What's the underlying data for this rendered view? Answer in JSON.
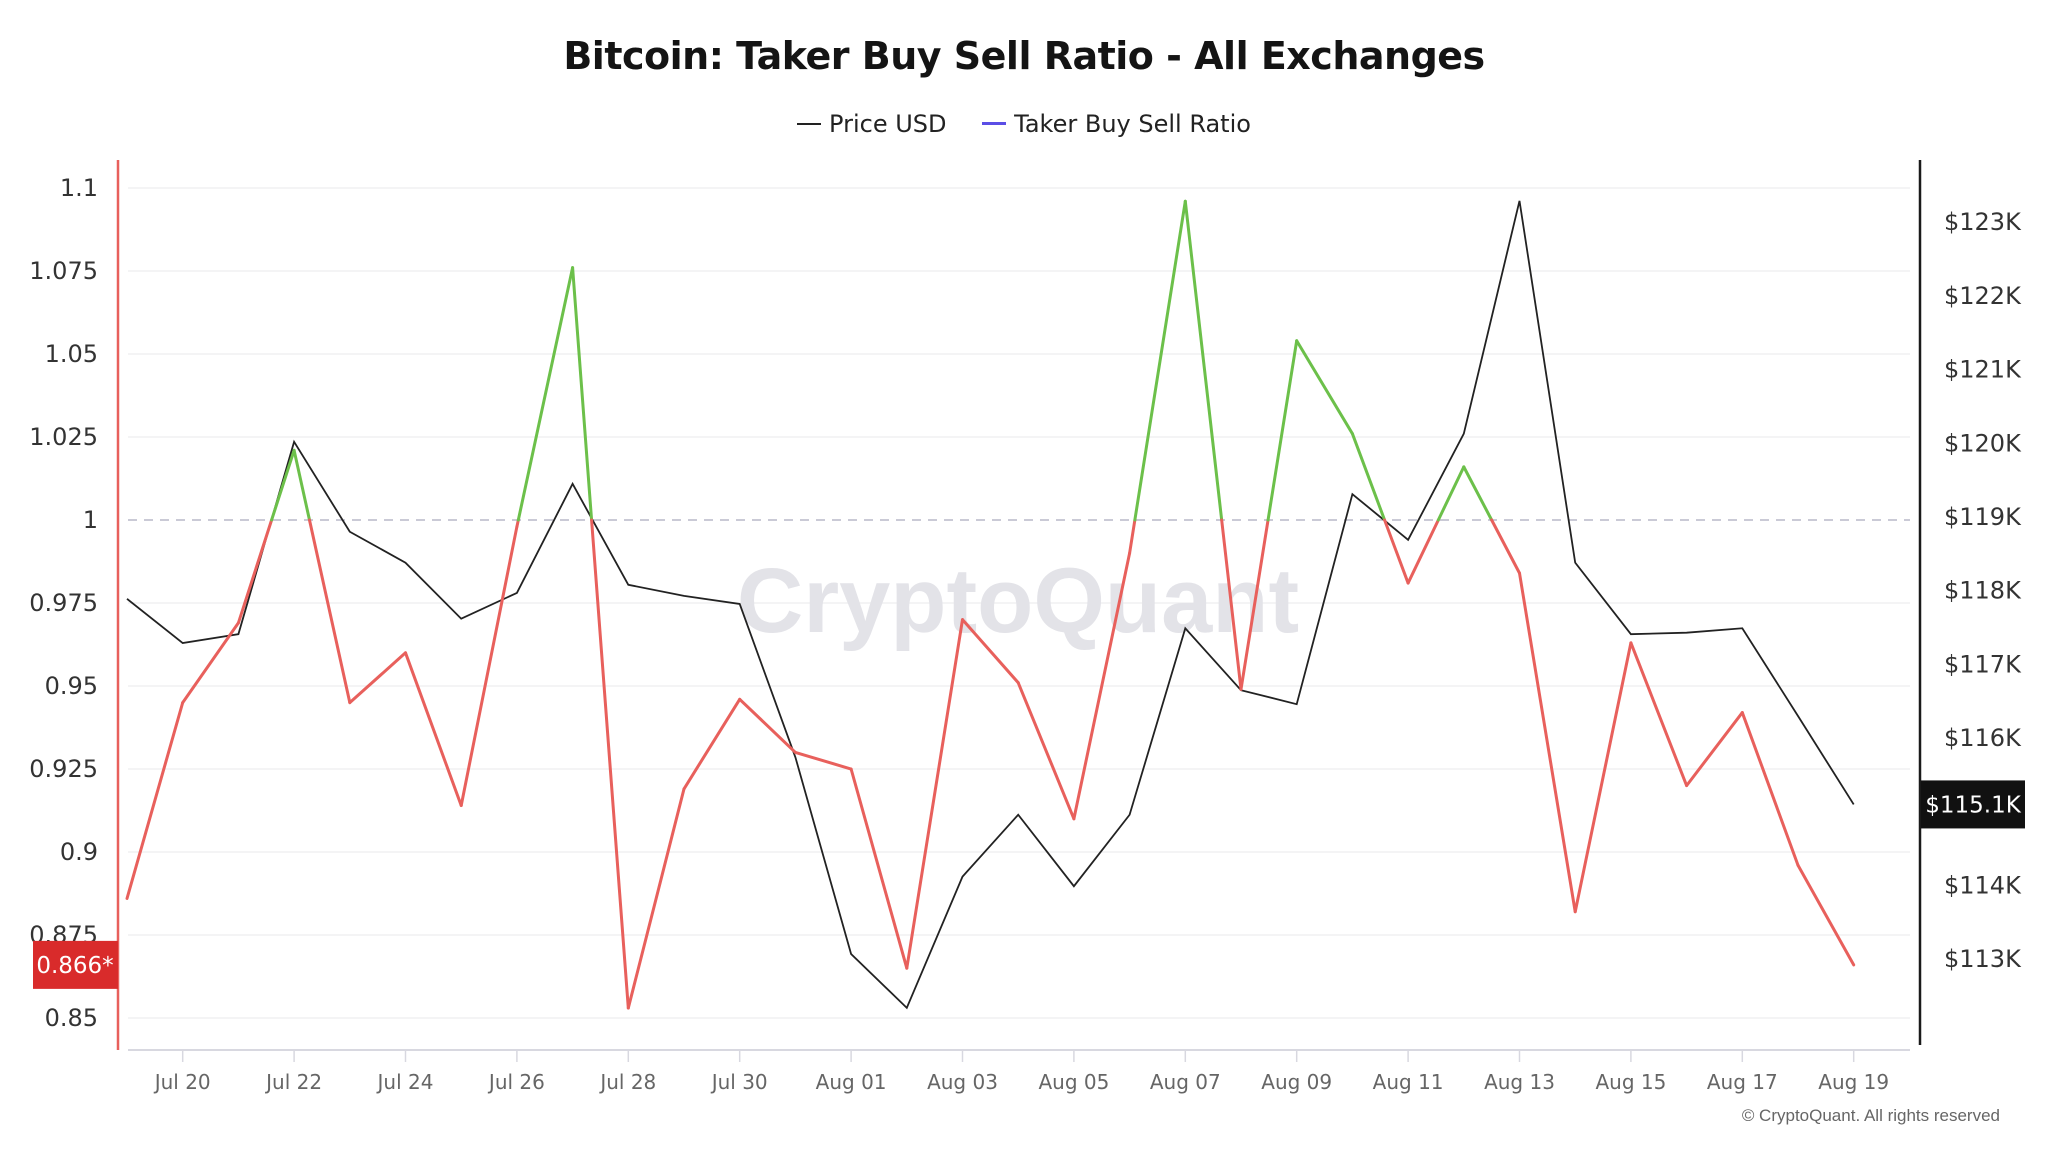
{
  "title": "Bitcoin: Taker Buy Sell Ratio - All Exchanges",
  "legend": [
    {
      "label": "Price USD",
      "color": "#222222"
    },
    {
      "label": "Taker Buy Sell Ratio",
      "color": "#5b4ee6"
    }
  ],
  "watermark": "CryptoQuant",
  "copyright": "© CryptoQuant. All rights reserved",
  "colors": {
    "ratio_above": "#6cc04a",
    "ratio_below": "#e8605c",
    "price": "#222222",
    "left_axis": "#e8605c",
    "right_axis": "#1a1a1a",
    "reference_line": "#b8b8c8",
    "grid": "#f0f0f2",
    "ratio_badge_bg": "#d92b2b",
    "price_badge_bg": "#111111"
  },
  "badges": {
    "ratio_current": "0.866*",
    "price_current": "$115.1K"
  },
  "chart_data": {
    "type": "line",
    "title": "Bitcoin: Taker Buy Sell Ratio - All Exchanges",
    "xlabel": "",
    "ylabel_left": "Taker Buy Sell Ratio",
    "ylabel_right": "Price USD",
    "legend_position": "top",
    "grid": true,
    "reference_line": {
      "axis": "left",
      "value": 1,
      "style": "dashed"
    },
    "x": [
      "Jul 19",
      "Jul 20",
      "Jul 21",
      "Jul 22",
      "Jul 23",
      "Jul 24",
      "Jul 25",
      "Jul 26",
      "Jul 27",
      "Jul 28",
      "Jul 29",
      "Jul 30",
      "Jul 31",
      "Aug 01",
      "Aug 02",
      "Aug 03",
      "Aug 04",
      "Aug 05",
      "Aug 06",
      "Aug 07",
      "Aug 08",
      "Aug 09",
      "Aug 10",
      "Aug 11",
      "Aug 12",
      "Aug 13",
      "Aug 14",
      "Aug 15",
      "Aug 16",
      "Aug 17",
      "Aug 18",
      "Aug 19"
    ],
    "x_ticks": [
      "Jul 20",
      "Jul 22",
      "Jul 24",
      "Jul 26",
      "Jul 28",
      "Jul 30",
      "Aug 01",
      "Aug 03",
      "Aug 05",
      "Aug 07",
      "Aug 09",
      "Aug 11",
      "Aug 13",
      "Aug 15",
      "Aug 17",
      "Aug 19"
    ],
    "left_axis": {
      "ticks": [
        "1.1",
        "1.075",
        "1.05",
        "1.025",
        "1",
        "0.975",
        "0.95",
        "0.925",
        "0.9",
        "0.875",
        "0.85"
      ],
      "range": [
        0.84,
        1.105
      ]
    },
    "right_axis": {
      "ticks": [
        "$123K",
        "$122K",
        "$121K",
        "$120K",
        "$119K",
        "$118K",
        "$117K",
        "$116K",
        "$114K",
        "$113K"
      ],
      "range": [
        112.0,
        123.8
      ]
    },
    "series": [
      {
        "name": "Taker Buy Sell Ratio",
        "axis": "left",
        "values": [
          0.886,
          0.945,
          0.969,
          1.021,
          0.945,
          0.96,
          0.914,
          0.998,
          1.076,
          0.853,
          0.919,
          0.946,
          0.93,
          0.925,
          0.865,
          0.97,
          0.951,
          0.91,
          0.99,
          1.096,
          0.949,
          1.054,
          1.026,
          0.981,
          1.016,
          0.984,
          0.882,
          0.963,
          0.92,
          0.942,
          0.896,
          0.866
        ]
      },
      {
        "name": "Price USD",
        "axis": "right",
        "unit": "K USD",
        "values": [
          117.89,
          117.29,
          117.41,
          120.02,
          118.8,
          118.38,
          117.62,
          117.97,
          119.45,
          118.08,
          117.93,
          117.82,
          115.74,
          113.07,
          112.34,
          114.12,
          114.96,
          113.99,
          114.96,
          117.49,
          116.65,
          116.46,
          119.31,
          118.69,
          120.13,
          123.29,
          118.38,
          117.41,
          117.43,
          117.49,
          116.3,
          115.1
        ]
      }
    ],
    "last_values": {
      "ratio": "0.866*",
      "price": "$115.1K"
    }
  }
}
